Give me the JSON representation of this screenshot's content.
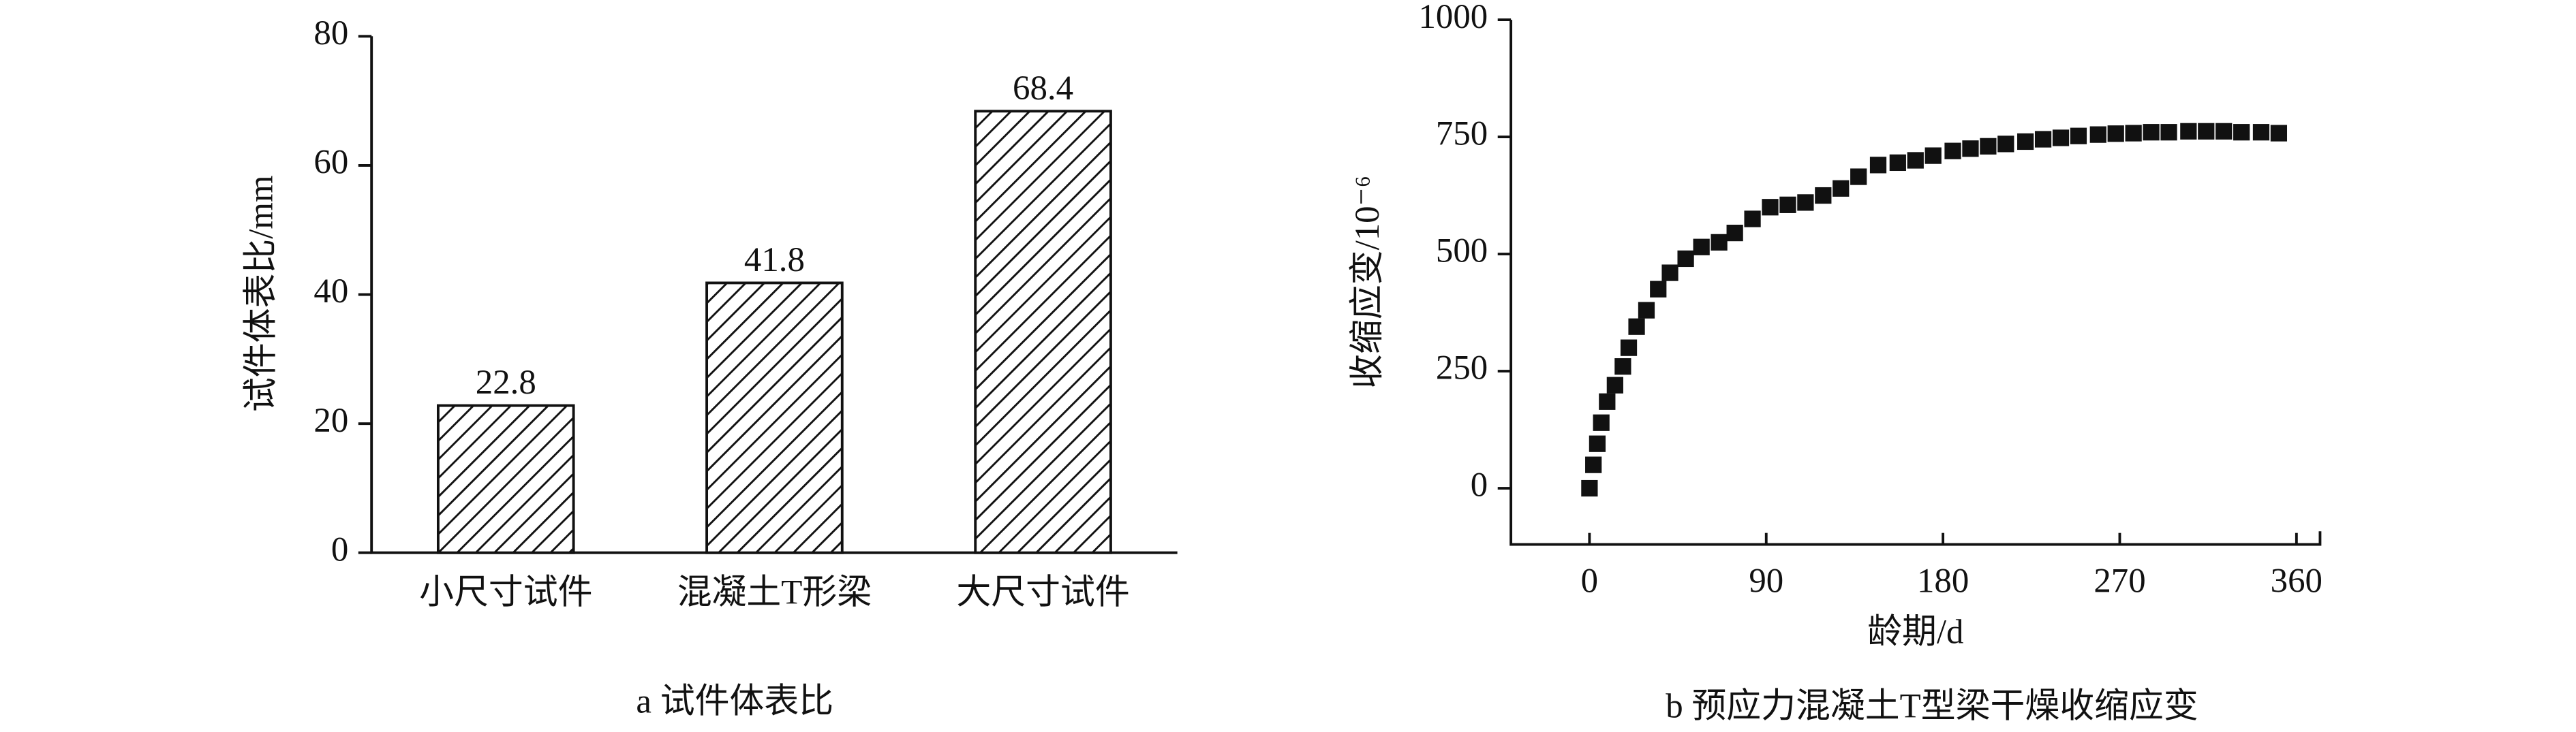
{
  "chart_data": [
    {
      "type": "bar",
      "caption": "a  试件体表比",
      "y_label": "试件体表比/mm",
      "categories": [
        "小尺寸试件",
        "混凝土T形梁",
        "大尺寸试件"
      ],
      "values": [
        22.8,
        41.8,
        68.4
      ],
      "color": "#111111",
      "hatch": true,
      "ylim": [
        0,
        80
      ],
      "yticks": [
        0,
        20,
        40,
        60,
        80
      ]
    },
    {
      "type": "scatter",
      "caption": "b  预应力混凝土T型梁干燥收缩应变",
      "x_label": "龄期/d",
      "y_label": "收缩应变/10⁻⁶",
      "x": [
        0,
        2,
        4,
        6,
        9,
        13,
        17,
        20,
        24,
        29,
        35,
        41,
        49,
        57,
        66,
        74,
        83,
        92,
        101,
        110,
        119,
        128,
        137,
        147,
        157,
        166,
        175,
        185,
        194,
        203,
        212,
        222,
        231,
        240,
        249,
        259,
        268,
        277,
        286,
        295,
        305,
        314,
        323,
        332,
        342,
        351
      ],
      "series": [
        {
          "color": "#111111",
          "values": [
            0,
            50,
            95,
            140,
            185,
            220,
            260,
            300,
            345,
            380,
            425,
            460,
            490,
            515,
            525,
            545,
            575,
            600,
            605,
            610,
            625,
            640,
            665,
            690,
            695,
            700,
            710,
            720,
            725,
            730,
            735,
            740,
            745,
            748,
            752,
            755,
            757,
            758,
            760,
            760,
            762,
            762,
            762,
            760,
            760,
            758
          ]
        }
      ],
      "xlim": [
        -40,
        372
      ],
      "xticks": [
        0,
        90,
        180,
        270,
        360
      ],
      "ylim": [
        -120,
        1000
      ],
      "yticks": [
        0,
        250,
        500,
        750,
        1000
      ]
    }
  ]
}
